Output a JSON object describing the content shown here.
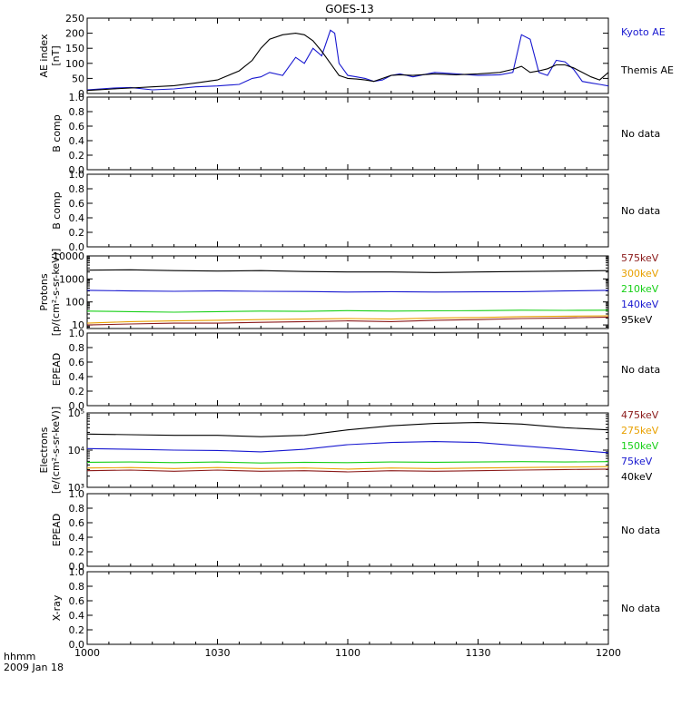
{
  "title": "GOES-13",
  "time_axis": {
    "corner_label_1": "hhmm",
    "corner_label_2": "2009 Jan 18",
    "tick_labels": [
      "1000",
      "1030",
      "1100",
      "1130",
      "1200"
    ]
  },
  "chart_data": [
    {
      "type": "line",
      "panel": "ae-index",
      "ylabel": [
        "AE index",
        "[nT]"
      ],
      "ylim": [
        0,
        250
      ],
      "yticks": [
        0,
        50,
        100,
        150,
        200,
        250
      ],
      "x_minutes_since_1000": [
        0,
        6,
        10,
        15,
        20,
        25,
        30,
        35,
        38,
        40,
        42,
        45,
        48,
        50,
        52,
        54,
        56,
        57,
        58,
        60,
        62,
        64,
        66,
        68,
        70,
        72,
        75,
        80,
        85,
        90,
        95,
        98,
        100,
        102,
        104,
        106,
        108,
        110,
        112,
        114,
        116,
        118,
        120
      ],
      "series": [
        {
          "name": "Kyoto AE",
          "color": "#1818d0",
          "values": [
            12,
            18,
            20,
            12,
            15,
            22,
            25,
            30,
            50,
            55,
            70,
            60,
            120,
            100,
            150,
            125,
            210,
            200,
            100,
            60,
            55,
            50,
            40,
            45,
            60,
            65,
            55,
            70,
            65,
            60,
            62,
            70,
            195,
            180,
            70,
            60,
            110,
            105,
            80,
            40,
            35,
            30,
            25
          ]
        },
        {
          "name": "Themis AE",
          "color": "#000000",
          "values": [
            10,
            15,
            18,
            22,
            26,
            35,
            45,
            75,
            110,
            150,
            180,
            195,
            200,
            195,
            175,
            140,
            100,
            80,
            60,
            50,
            48,
            45,
            40,
            50,
            60,
            62,
            60,
            65,
            62,
            65,
            70,
            80,
            90,
            70,
            75,
            82,
            95,
            95,
            85,
            70,
            55,
            45,
            70
          ]
        }
      ]
    },
    {
      "type": "line",
      "panel": "b-comp-1",
      "ylabel": [
        "B comp"
      ],
      "ylim": [
        0,
        1
      ],
      "yticks": [
        "0.0",
        "0.2",
        "0.4",
        "0.6",
        "0.8",
        "1.0"
      ],
      "status": "No data"
    },
    {
      "type": "line",
      "panel": "b-comp-2",
      "ylabel": [
        "B comp"
      ],
      "ylim": [
        0,
        1
      ],
      "yticks": [
        "0.0",
        "0.2",
        "0.4",
        "0.6",
        "0.8",
        "1.0"
      ],
      "status": "No data"
    },
    {
      "type": "line",
      "panel": "protons",
      "yscale": "log",
      "ylabel": [
        "Protons",
        "[p/(cm²-s-sr-keV)]"
      ],
      "ylim": [
        7,
        10000
      ],
      "yticks": [
        10,
        100,
        1000,
        10000
      ],
      "ytick_labels": [
        "10",
        "100",
        "1000",
        "10000"
      ],
      "x_minutes_since_1000": [
        0,
        10,
        20,
        30,
        40,
        50,
        60,
        70,
        80,
        90,
        100,
        110,
        120
      ],
      "series": [
        {
          "name": "575keV",
          "color": "#8b1a1a",
          "values": [
            10,
            11,
            12,
            12,
            13,
            14,
            15,
            14,
            16,
            17,
            19,
            20,
            22
          ]
        },
        {
          "name": "300keV",
          "color": "#e8a000",
          "values": [
            12,
            14,
            15,
            16,
            17,
            18,
            19,
            18,
            20,
            21,
            23,
            24,
            25
          ]
        },
        {
          "name": "210keV",
          "color": "#18d018",
          "values": [
            40,
            38,
            36,
            38,
            40,
            39,
            42,
            40,
            41,
            42,
            44,
            43,
            44
          ]
        },
        {
          "name": "140keV",
          "color": "#1818d0",
          "values": [
            320,
            300,
            290,
            300,
            290,
            285,
            270,
            280,
            270,
            275,
            280,
            300,
            320
          ]
        },
        {
          "name": "95keV",
          "color": "#000000",
          "values": [
            2400,
            2500,
            2300,
            2200,
            2300,
            2100,
            2000,
            2000,
            1900,
            2000,
            2100,
            2200,
            2300
          ]
        }
      ]
    },
    {
      "type": "line",
      "panel": "epead-1",
      "ylabel": [
        "EPEAD"
      ],
      "ylim": [
        0,
        1
      ],
      "yticks": [
        "0.0",
        "0.2",
        "0.4",
        "0.6",
        "0.8",
        "1.0"
      ],
      "status": "No data"
    },
    {
      "type": "line",
      "panel": "electrons",
      "yscale": "log",
      "ylabel": [
        "Electrons",
        "[e/(cm²-s-sr-keV)]"
      ],
      "ylim": [
        1000,
        100000
      ],
      "yticks": [
        1000,
        10000,
        100000
      ],
      "ytick_labels": [
        "10³",
        "10⁴",
        "10⁵"
      ],
      "x_minutes_since_1000": [
        0,
        10,
        20,
        30,
        40,
        50,
        60,
        70,
        80,
        90,
        100,
        110,
        120
      ],
      "series": [
        {
          "name": "475keV",
          "color": "#8b1a1a",
          "values": [
            2800,
            2900,
            2700,
            2900,
            2700,
            2800,
            2600,
            2800,
            2700,
            2800,
            2900,
            3000,
            3100
          ]
        },
        {
          "name": "275keV",
          "color": "#e8a000",
          "values": [
            3300,
            3400,
            3200,
            3400,
            3200,
            3300,
            3100,
            3300,
            3200,
            3300,
            3400,
            3500,
            3600
          ]
        },
        {
          "name": "150keV",
          "color": "#18d018",
          "values": [
            4700,
            4800,
            4600,
            4800,
            4500,
            4700,
            4600,
            4800,
            4700,
            4800,
            4900,
            4800,
            4900
          ]
        },
        {
          "name": "75keV",
          "color": "#1818d0",
          "values": [
            11000,
            10500,
            10000,
            9800,
            9000,
            10500,
            14000,
            16000,
            17000,
            16000,
            13000,
            10500,
            8500
          ]
        },
        {
          "name": "40keV",
          "color": "#000000",
          "values": [
            27000,
            26000,
            25000,
            25000,
            23000,
            25000,
            35000,
            45000,
            52000,
            55000,
            50000,
            40000,
            35000
          ]
        }
      ]
    },
    {
      "type": "line",
      "panel": "epead-2",
      "ylabel": [
        "EPEAD"
      ],
      "ylim": [
        0,
        1
      ],
      "yticks": [
        "0.0",
        "0.2",
        "0.4",
        "0.6",
        "0.8",
        "1.0"
      ],
      "status": "No data"
    },
    {
      "type": "line",
      "panel": "x-ray",
      "ylabel": [
        "X-ray"
      ],
      "ylim": [
        0,
        1
      ],
      "yticks": [
        "0.0",
        "0.2",
        "0.4",
        "0.6",
        "0.8",
        "1.0"
      ],
      "status": "No data"
    }
  ]
}
